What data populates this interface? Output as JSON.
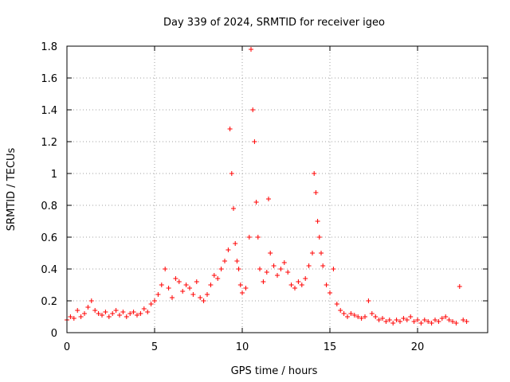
{
  "chart_data": {
    "type": "scatter",
    "title": "Day 339 of 2024, SRMTID for receiver igeo",
    "xlabel": "GPS time / hours",
    "ylabel": "SRMTID / TECUs",
    "xlim": [
      0,
      24
    ],
    "ylim": [
      0,
      1.8
    ],
    "xticks": [
      0,
      5,
      10,
      15,
      20
    ],
    "yticks": [
      0,
      0.2,
      0.4,
      0.6,
      0.8,
      1,
      1.2,
      1.4,
      1.6,
      1.8
    ],
    "xtick_labels": [
      "0",
      "5",
      "10",
      "15",
      "20"
    ],
    "ytick_labels": [
      "0",
      "0.2",
      "0.4",
      "0.6",
      "0.8",
      "1",
      "1.2",
      "1.4",
      "1.6",
      "1.8"
    ],
    "grid": true,
    "marker": "+",
    "color": "#ff0000",
    "series": [
      {
        "name": "SRMTID",
        "x": [
          0.0,
          0.2,
          0.4,
          0.6,
          0.8,
          1.0,
          1.2,
          1.4,
          1.6,
          1.8,
          2.0,
          2.2,
          2.4,
          2.6,
          2.8,
          3.0,
          3.2,
          3.4,
          3.6,
          3.8,
          4.0,
          4.2,
          4.4,
          4.6,
          4.8,
          5.0,
          5.2,
          5.4,
          5.6,
          5.8,
          6.0,
          6.2,
          6.4,
          6.6,
          6.8,
          7.0,
          7.2,
          7.4,
          7.6,
          7.8,
          8.0,
          8.2,
          8.4,
          8.6,
          8.8,
          9.0,
          9.2,
          9.3,
          9.4,
          9.5,
          9.6,
          9.7,
          9.8,
          9.9,
          10.0,
          10.2,
          10.4,
          10.5,
          10.6,
          10.7,
          10.8,
          10.9,
          11.0,
          11.2,
          11.4,
          11.5,
          11.6,
          11.8,
          12.0,
          12.2,
          12.4,
          12.6,
          12.8,
          13.0,
          13.2,
          13.4,
          13.6,
          13.8,
          14.0,
          14.1,
          14.2,
          14.3,
          14.4,
          14.5,
          14.6,
          14.8,
          15.0,
          15.2,
          15.4,
          15.6,
          15.8,
          16.0,
          16.2,
          16.4,
          16.6,
          16.8,
          17.0,
          17.2,
          17.4,
          17.6,
          17.8,
          18.0,
          18.2,
          18.4,
          18.6,
          18.8,
          19.0,
          19.2,
          19.4,
          19.6,
          19.8,
          20.0,
          20.2,
          20.4,
          20.6,
          20.8,
          21.0,
          21.2,
          21.4,
          21.6,
          21.8,
          22.0,
          22.2,
          22.4,
          22.6,
          22.8
        ],
        "y": [
          0.08,
          0.1,
          0.09,
          0.14,
          0.1,
          0.12,
          0.16,
          0.2,
          0.14,
          0.12,
          0.11,
          0.13,
          0.1,
          0.12,
          0.14,
          0.11,
          0.13,
          0.1,
          0.12,
          0.13,
          0.11,
          0.12,
          0.15,
          0.13,
          0.18,
          0.2,
          0.24,
          0.3,
          0.4,
          0.28,
          0.22,
          0.34,
          0.32,
          0.26,
          0.3,
          0.28,
          0.24,
          0.32,
          0.22,
          0.2,
          0.24,
          0.3,
          0.36,
          0.34,
          0.4,
          0.45,
          0.52,
          1.28,
          1.0,
          0.78,
          0.56,
          0.45,
          0.4,
          0.3,
          0.25,
          0.28,
          0.6,
          1.78,
          1.4,
          1.2,
          0.82,
          0.6,
          0.4,
          0.32,
          0.38,
          0.84,
          0.5,
          0.42,
          0.36,
          0.4,
          0.44,
          0.38,
          0.3,
          0.28,
          0.32,
          0.3,
          0.34,
          0.42,
          0.5,
          1.0,
          0.88,
          0.7,
          0.6,
          0.5,
          0.42,
          0.3,
          0.25,
          0.4,
          0.18,
          0.14,
          0.12,
          0.1,
          0.12,
          0.11,
          0.1,
          0.09,
          0.1,
          0.2,
          0.12,
          0.1,
          0.08,
          0.09,
          0.07,
          0.08,
          0.06,
          0.08,
          0.07,
          0.09,
          0.08,
          0.1,
          0.07,
          0.08,
          0.06,
          0.08,
          0.07,
          0.06,
          0.08,
          0.07,
          0.09,
          0.1,
          0.08,
          0.07,
          0.06,
          0.29,
          0.08,
          0.07
        ]
      }
    ]
  }
}
